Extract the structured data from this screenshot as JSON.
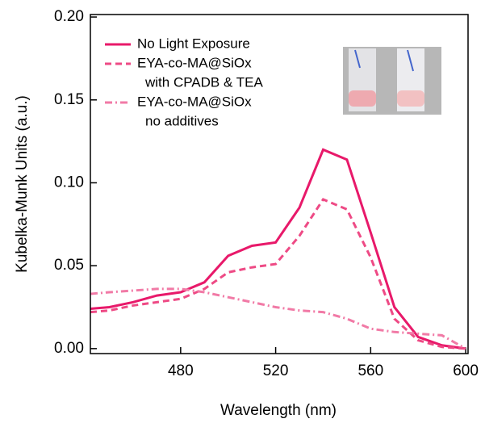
{
  "chart_data": {
    "type": "line",
    "xlabel": "Wavelength (nm)",
    "ylabel": "Kubelka-Munk Units (a.u.)",
    "x": [
      442,
      450,
      460,
      470,
      480,
      490,
      500,
      510,
      520,
      530,
      540,
      550,
      560,
      570,
      580,
      590,
      600
    ],
    "series": [
      {
        "name": "No Light Exposure",
        "color": "#e8196a",
        "dash": "solid",
        "values": [
          0.024,
          0.025,
          0.028,
          0.032,
          0.034,
          0.04,
          0.056,
          0.062,
          0.064,
          0.085,
          0.12,
          0.114,
          0.07,
          0.025,
          0.007,
          0.002,
          0.0
        ]
      },
      {
        "name": "EYA-co-MA@SiOx",
        "note": "with CPADB & TEA",
        "color": "#ee4a85",
        "dash": "dashed",
        "values": [
          0.022,
          0.023,
          0.026,
          0.028,
          0.03,
          0.036,
          0.046,
          0.049,
          0.051,
          0.068,
          0.09,
          0.084,
          0.055,
          0.018,
          0.005,
          0.001,
          0.0
        ]
      },
      {
        "name": "EYA-co-MA@SiOx",
        "note": "no additives",
        "color": "#f17aa6",
        "dash": "dashdot",
        "values": [
          0.033,
          0.034,
          0.035,
          0.036,
          0.036,
          0.034,
          0.031,
          0.028,
          0.025,
          0.023,
          0.022,
          0.018,
          0.012,
          0.01,
          0.009,
          0.008,
          0.0
        ]
      }
    ],
    "xlim": [
      442,
      601
    ],
    "xticks": [
      480,
      520,
      560,
      600
    ],
    "ylim": [
      -0.003,
      0.2015
    ],
    "yticks": [
      {
        "value": 0,
        "label": "0.00"
      },
      {
        "value": 0.05,
        "label": "0.05"
      },
      {
        "value": 0.1,
        "label": "0.10"
      },
      {
        "value": 0.15,
        "label": "0.15"
      },
      {
        "value": 0.2,
        "label": "0.20"
      }
    ],
    "legend": "upper left"
  }
}
